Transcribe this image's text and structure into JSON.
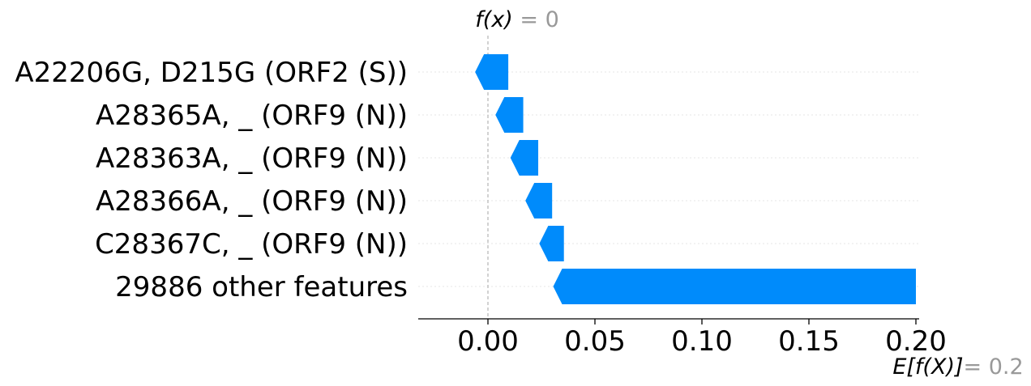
{
  "chart_data": {
    "type": "waterfall",
    "features": [
      {
        "label": "A22206G, D215G (ORF2 (S))",
        "start": 0.0095,
        "end": -0.006
      },
      {
        "label": "A28365A, _ (ORF9 (N))",
        "start": 0.0165,
        "end": 0.0035
      },
      {
        "label": "A28363A, _ (ORF9 (N))",
        "start": 0.0235,
        "end": 0.0105
      },
      {
        "label": "A28366A, _ (ORF9 (N))",
        "start": 0.03,
        "end": 0.0175
      },
      {
        "label": "C28367C, _ (ORF9 (N))",
        "start": 0.0355,
        "end": 0.024
      },
      {
        "label": "29886 other features",
        "start": 0.2,
        "end": 0.0305
      }
    ],
    "x_ticks": [
      {
        "value": 0.0,
        "label": "0.00"
      },
      {
        "value": 0.05,
        "label": "0.05"
      },
      {
        "value": 0.1,
        "label": "0.10"
      },
      {
        "value": 0.15,
        "label": "0.15"
      },
      {
        "value": 0.2,
        "label": "0.20"
      }
    ],
    "xlim": [
      -0.033,
      0.2
    ],
    "fx": {
      "label": "f(x)",
      "eq": " = 0",
      "value": 0
    },
    "efx": {
      "label": "E[f(X)]",
      "eq": "= 0.2",
      "value": 0.2
    },
    "bar_color": "#008bfb",
    "grid_color": "#e6e6e6"
  }
}
